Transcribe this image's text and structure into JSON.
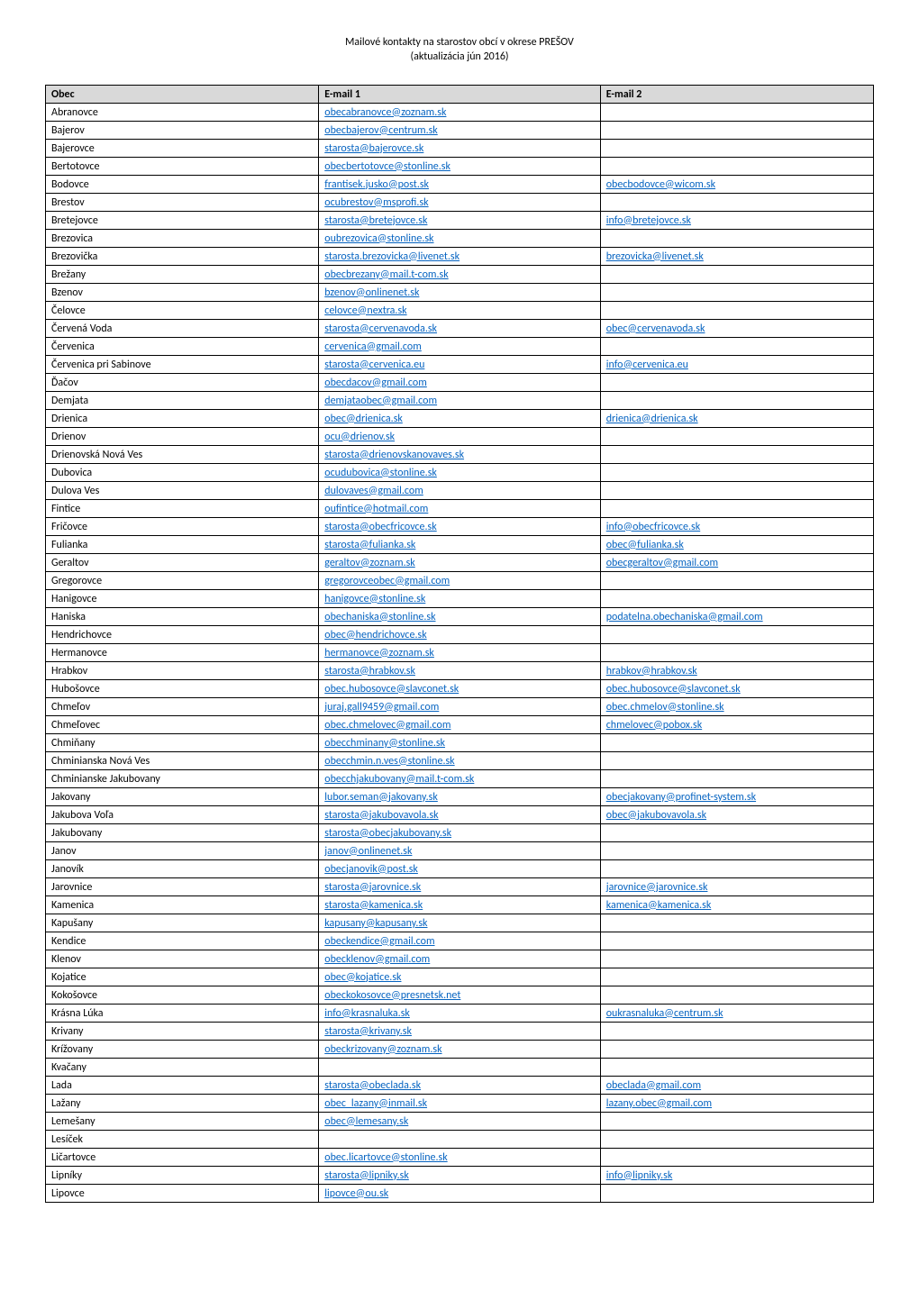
{
  "header": {
    "title": "Mailové kontakty na starostov obcí v okrese PREŠOV",
    "subtitle": "(aktualizácia jún 2016)"
  },
  "table": {
    "columns": [
      "Obec",
      "E-mail 1",
      "E-mail 2"
    ],
    "link_color": "#0563c1",
    "header_bg": "#d9d9d9",
    "border_color": "#000000",
    "rows": [
      {
        "obec": "Abranovce",
        "e1": "obecabranovce@zoznam.sk",
        "e2": ""
      },
      {
        "obec": "Bajerov",
        "e1": "obecbajerov@centrum.sk",
        "e2": ""
      },
      {
        "obec": "Bajerovce",
        "e1": "starosta@bajerovce.sk",
        "e2": ""
      },
      {
        "obec": "Bertotovce",
        "e1": "obecbertotovce@stonline.sk",
        "e2": ""
      },
      {
        "obec": "Bodovce",
        "e1": "frantisek.jusko@post.sk",
        "e2": "obecbodovce@wicom.sk"
      },
      {
        "obec": "Brestov",
        "e1": "ocubrestov@msprofi.sk",
        "e2": ""
      },
      {
        "obec": "Bretejovce",
        "e1": "starosta@bretejovce.sk",
        "e2": "info@bretejovce.sk"
      },
      {
        "obec": "Brezovica",
        "e1": "oubrezovica@stonline.sk",
        "e2": ""
      },
      {
        "obec": "Brezovička",
        "e1": "starosta.brezovicka@livenet.sk",
        "e2": "brezovicka@livenet.sk"
      },
      {
        "obec": "Brežany",
        "e1": "obecbrezany@mail.t-com.sk",
        "e2": ""
      },
      {
        "obec": "Bzenov",
        "e1": "bzenov@onlinenet.sk",
        "e2": ""
      },
      {
        "obec": "Čelovce",
        "e1": "celovce@nextra.sk",
        "e2": ""
      },
      {
        "obec": "Červená Voda",
        "e1": "starosta@cervenavoda.sk",
        "e2": "obec@cervenavoda.sk"
      },
      {
        "obec": "Červenica",
        "e1": "cervenica@gmail.com",
        "e2": ""
      },
      {
        "obec": "Červenica pri Sabinove",
        "e1": "starosta@cervenica.eu",
        "e2": "info@cervenica.eu"
      },
      {
        "obec": "Ďačov",
        "e1": "obecdacov@gmail.com",
        "e2": ""
      },
      {
        "obec": "Demjata",
        "e1": "demjataobec@gmail.com",
        "e2": ""
      },
      {
        "obec": "Drienica",
        "e1": "obec@drienica.sk",
        "e2": "drienica@drienica.sk"
      },
      {
        "obec": "Drienov",
        "e1": "ocu@drienov.sk",
        "e2": ""
      },
      {
        "obec": "Drienovská Nová Ves",
        "e1": "starosta@drienovskanovaves.sk",
        "e2": ""
      },
      {
        "obec": "Dubovica",
        "e1": "ocudubovica@stonline.sk",
        "e2": ""
      },
      {
        "obec": "Dulova Ves",
        "e1": "dulovaves@gmail.com",
        "e2": ""
      },
      {
        "obec": "Fintice",
        "e1": "oufintice@hotmail.com",
        "e2": ""
      },
      {
        "obec": "Fričovce",
        "e1": "starosta@obecfricovce.sk",
        "e2": "info@obecfricovce.sk"
      },
      {
        "obec": "Fulianka",
        "e1": "starosta@fulianka.sk",
        "e2": "obec@fulianka.sk"
      },
      {
        "obec": "Geraltov",
        "e1": "geraltov@zoznam.sk",
        "e2": "obecgeraltov@gmail.com"
      },
      {
        "obec": "Gregorovce",
        "e1": "gregorovceobec@gmail.com",
        "e2": ""
      },
      {
        "obec": "Hanigovce",
        "e1": "hanigovce@stonline.sk",
        "e2": ""
      },
      {
        "obec": "Haniska",
        "e1": "obechaniska@stonline.sk",
        "e2": "podatelna.obechaniska@gmail.com"
      },
      {
        "obec": "Hendrichovce",
        "e1": "obec@hendrichovce.sk",
        "e2": ""
      },
      {
        "obec": "Hermanovce",
        "e1": "hermanovce@zoznam.sk",
        "e2": ""
      },
      {
        "obec": "Hrabkov",
        "e1": "starosta@hrabkov.sk",
        "e2": "hrabkov@hrabkov.sk"
      },
      {
        "obec": "Hubošovce",
        "e1": "obec.hubosovce@slavconet.sk",
        "e2": "obec.hubosovce@slavconet.sk"
      },
      {
        "obec": "Chmeľov",
        "e1": "juraj.gall9459@gmail.com",
        "e2": "obec.chmelov@stonline.sk"
      },
      {
        "obec": "Chmeľovec",
        "e1": "obec.chmelovec@gmail.com",
        "e2": "chmelovec@pobox.sk"
      },
      {
        "obec": "Chmiňany",
        "e1": "obecchminany@stonline.sk",
        "e2": ""
      },
      {
        "obec": "Chminianska Nová Ves",
        "e1": "obecchmin.n.ves@stonline.sk",
        "e2": ""
      },
      {
        "obec": "Chminianske Jakubovany",
        "e1": "obecchjakubovany@mail.t-com.sk",
        "e2": ""
      },
      {
        "obec": "Jakovany",
        "e1": "lubor.seman@jakovany.sk",
        "e2": "obecjakovany@profinet-system.sk"
      },
      {
        "obec": "Jakubova Voľa",
        "e1": "starosta@jakubovavola.sk",
        "e2": "obec@jakubovavola.sk"
      },
      {
        "obec": "Jakubovany",
        "e1": "starosta@obecjakubovany.sk",
        "e2": ""
      },
      {
        "obec": "Janov",
        "e1": "janov@onlinenet.sk",
        "e2": ""
      },
      {
        "obec": "Janovík",
        "e1": "obecjanovik@post.sk",
        "e2": ""
      },
      {
        "obec": "Jarovnice",
        "e1": "starosta@jarovnice.sk",
        "e2": "jarovnice@jarovnice.sk"
      },
      {
        "obec": "Kamenica",
        "e1": "starosta@kamenica.sk",
        "e2": "kamenica@kamenica.sk"
      },
      {
        "obec": "Kapušany",
        "e1": "kapusany@kapusany.sk",
        "e2": ""
      },
      {
        "obec": "Kendice",
        "e1": "obeckendice@gmail.com",
        "e2": ""
      },
      {
        "obec": "Klenov",
        "e1": "obecklenov@gmail.com",
        "e2": ""
      },
      {
        "obec": "Kojatice",
        "e1": "obec@kojatice.sk",
        "e2": ""
      },
      {
        "obec": "Kokošovce",
        "e1": "obeckokosovce@presnetsk.net",
        "e2": ""
      },
      {
        "obec": "Krásna Lúka",
        "e1": "info@krasnaluka.sk",
        "e2": "oukrasnaluka@centrum.sk"
      },
      {
        "obec": "Krivany",
        "e1": "starosta@krivany.sk",
        "e2": ""
      },
      {
        "obec": "Krížovany",
        "e1": "obeckrizovany@zoznam.sk",
        "e2": ""
      },
      {
        "obec": "Kvačany",
        "e1": "",
        "e2": ""
      },
      {
        "obec": "Lada",
        "e1": "starosta@obeclada.sk",
        "e2": "obeclada@gmail.com"
      },
      {
        "obec": "Lažany",
        "e1": "obec_lazany@inmail.sk",
        "e2": "lazany.obec@gmail.com"
      },
      {
        "obec": "Lemešany",
        "e1": "obec@lemesany.sk",
        "e2": ""
      },
      {
        "obec": "Lesíček",
        "e1": "",
        "e2": ""
      },
      {
        "obec": "Ličartovce",
        "e1": "obec.licartovce@stonline.sk",
        "e2": ""
      },
      {
        "obec": "Lipníky",
        "e1": "starosta@lipniky.sk",
        "e2": "info@lipniky.sk"
      },
      {
        "obec": "Lipovce",
        "e1": "lipovce@ou.sk",
        "e2": ""
      }
    ]
  }
}
